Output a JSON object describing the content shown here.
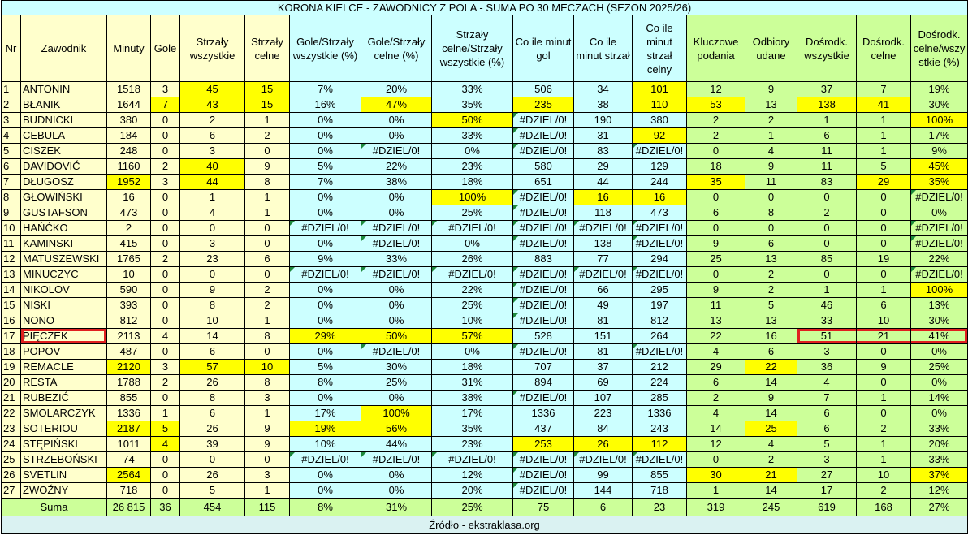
{
  "title": "KORONA KIELCE - ZAWODNICY Z POLA - SUMA PO 30 MECZACH (SEZON 2025/26)",
  "table": {
    "headers": [
      "Nr",
      "Zawodnik",
      "Minuty",
      "Gole",
      "Strzały wszystkie",
      "Strzały celne",
      "Gole/Strzały wszystkie (%)",
      "Gole/Strzały celne (%)",
      "Strzały celne/Strzały wszystkie (%)",
      "Co ile minut gol",
      "Co ile minut strzał",
      "Co ile minut strzał celny",
      "Kluczowe podania",
      "Odbiory udane",
      "Dośrodk. wszystkie",
      "Dośrodk. celne",
      "Dośrodk. celne/wszystkie (%)"
    ],
    "rows": [
      [
        "1",
        "ANTONIN",
        "1518",
        "3",
        "45",
        "15",
        "7%",
        "20%",
        "33%",
        "506",
        "34",
        "101",
        "12",
        "9",
        "37",
        "7",
        "19%"
      ],
      [
        "2",
        "BŁANIK",
        "1644",
        "7",
        "43",
        "15",
        "16%",
        "47%",
        "35%",
        "235",
        "38",
        "110",
        "53",
        "13",
        "138",
        "41",
        "30%"
      ],
      [
        "3",
        "BUDNICKI",
        "380",
        "0",
        "2",
        "1",
        "0%",
        "0%",
        "50%",
        "#DZIEL/0!",
        "190",
        "380",
        "2",
        "2",
        "1",
        "1",
        "100%"
      ],
      [
        "4",
        "CEBULA",
        "184",
        "0",
        "6",
        "2",
        "0%",
        "0%",
        "33%",
        "#DZIEL/0!",
        "31",
        "92",
        "2",
        "1",
        "6",
        "1",
        "17%"
      ],
      [
        "5",
        "CISZEK",
        "248",
        "0",
        "3",
        "0",
        "0%",
        "#DZIEL/0!",
        "0%",
        "#DZIEL/0!",
        "83",
        "#DZIEL/0!",
        "0",
        "4",
        "11",
        "1",
        "9%"
      ],
      [
        "6",
        "DAVIDOVIĆ",
        "1160",
        "2",
        "40",
        "9",
        "5%",
        "22%",
        "23%",
        "580",
        "29",
        "129",
        "18",
        "9",
        "11",
        "5",
        "45%"
      ],
      [
        "7",
        "DŁUGOSZ",
        "1952",
        "3",
        "44",
        "8",
        "7%",
        "38%",
        "18%",
        "651",
        "44",
        "244",
        "35",
        "11",
        "83",
        "29",
        "35%"
      ],
      [
        "8",
        "GŁOWIŃSKI",
        "16",
        "0",
        "1",
        "1",
        "0%",
        "0%",
        "100%",
        "#DZIEL/0!",
        "16",
        "16",
        "0",
        "0",
        "0",
        "0",
        "#DZIEL/0!"
      ],
      [
        "9",
        "GUSTAFSON",
        "473",
        "0",
        "4",
        "1",
        "0%",
        "0%",
        "25%",
        "#DZIEL/0!",
        "118",
        "473",
        "6",
        "8",
        "2",
        "0",
        "0%"
      ],
      [
        "10",
        "HAŃĆKO",
        "2",
        "0",
        "0",
        "0",
        "#DZIEL/0!",
        "#DZIEL/0!",
        "#DZIEL/0!",
        "#DZIEL/0!",
        "#DZIEL/0!",
        "#DZIEL/0!",
        "0",
        "0",
        "0",
        "0",
        "#DZIEL/0!"
      ],
      [
        "11",
        "KAMINSKI",
        "415",
        "0",
        "3",
        "0",
        "0%",
        "#DZIEL/0!",
        "0%",
        "#DZIEL/0!",
        "138",
        "#DZIEL/0!",
        "9",
        "6",
        "0",
        "0",
        "#DZIEL/0!"
      ],
      [
        "12",
        "MATUSZEWSKI",
        "1765",
        "2",
        "23",
        "6",
        "9%",
        "33%",
        "26%",
        "883",
        "77",
        "294",
        "25",
        "13",
        "85",
        "19",
        "22%"
      ],
      [
        "13",
        "MINUCZYC",
        "10",
        "0",
        "0",
        "0",
        "#DZIEL/0!",
        "#DZIEL/0!",
        "#DZIEL/0!",
        "#DZIEL/0!",
        "#DZIEL/0!",
        "#DZIEL/0!",
        "0",
        "2",
        "0",
        "0",
        "#DZIEL/0!"
      ],
      [
        "14",
        "NIKOLOV",
        "590",
        "0",
        "9",
        "2",
        "0%",
        "0%",
        "22%",
        "#DZIEL/0!",
        "66",
        "295",
        "9",
        "2",
        "1",
        "1",
        "100%"
      ],
      [
        "15",
        "NISKI",
        "393",
        "0",
        "8",
        "2",
        "0%",
        "0%",
        "25%",
        "#DZIEL/0!",
        "49",
        "197",
        "11",
        "5",
        "46",
        "6",
        "13%"
      ],
      [
        "16",
        "NONO",
        "812",
        "0",
        "10",
        "1",
        "0%",
        "0%",
        "10%",
        "#DZIEL/0!",
        "81",
        "812",
        "13",
        "13",
        "33",
        "10",
        "30%"
      ],
      [
        "17",
        "PIĘCZEK",
        "2113",
        "4",
        "14",
        "8",
        "29%",
        "50%",
        "57%",
        "528",
        "151",
        "264",
        "22",
        "16",
        "51",
        "21",
        "41%"
      ],
      [
        "18",
        "POPOV",
        "487",
        "0",
        "6",
        "0",
        "0%",
        "#DZIEL/0!",
        "0%",
        "#DZIEL/0!",
        "81",
        "#DZIEL/0!",
        "4",
        "6",
        "3",
        "0",
        "0%"
      ],
      [
        "19",
        "REMACLE",
        "2120",
        "3",
        "57",
        "10",
        "5%",
        "30%",
        "18%",
        "707",
        "37",
        "212",
        "29",
        "22",
        "36",
        "9",
        "25%"
      ],
      [
        "20",
        "RESTA",
        "1788",
        "2",
        "26",
        "8",
        "8%",
        "25%",
        "31%",
        "894",
        "69",
        "224",
        "6",
        "14",
        "4",
        "0",
        "0%"
      ],
      [
        "21",
        "RUBEZIĆ",
        "855",
        "0",
        "8",
        "3",
        "0%",
        "0%",
        "38%",
        "#DZIEL/0!",
        "107",
        "285",
        "2",
        "9",
        "7",
        "1",
        "14%"
      ],
      [
        "22",
        "SMOLARCZYK",
        "1336",
        "1",
        "6",
        "1",
        "17%",
        "100%",
        "17%",
        "1336",
        "223",
        "1336",
        "4",
        "14",
        "6",
        "0",
        "0%"
      ],
      [
        "23",
        "SOTERIOU",
        "2187",
        "5",
        "26",
        "9",
        "19%",
        "56%",
        "35%",
        "437",
        "84",
        "243",
        "14",
        "25",
        "6",
        "2",
        "33%"
      ],
      [
        "24",
        "STĘPIŃSKI",
        "1011",
        "4",
        "39",
        "9",
        "10%",
        "44%",
        "23%",
        "253",
        "26",
        "112",
        "12",
        "4",
        "5",
        "1",
        "20%"
      ],
      [
        "25",
        "STRZEBOŃSKI",
        "74",
        "0",
        "0",
        "0",
        "#DZIEL/0!",
        "#DZIEL/0!",
        "#DZIEL/0!",
        "#DZIEL/0!",
        "#DZIEL/0!",
        "#DZIEL/0!",
        "0",
        "2",
        "3",
        "1",
        "33%"
      ],
      [
        "26",
        "SVETLIN",
        "2564",
        "0",
        "26",
        "3",
        "0%",
        "0%",
        "12%",
        "#DZIEL/0!",
        "99",
        "855",
        "30",
        "21",
        "27",
        "10",
        "37%"
      ],
      [
        "27",
        "ZWOŹNY",
        "718",
        "0",
        "5",
        "1",
        "0%",
        "0%",
        "20%",
        "#DZIEL/0!",
        "144",
        "718",
        "1",
        "14",
        "17",
        "2",
        "12%"
      ]
    ],
    "total": {
      "label": "Suma",
      "values": [
        "26 815",
        "36",
        "454",
        "115",
        "8%",
        "31%",
        "25%",
        "75",
        "6",
        "23",
        "319",
        "245",
        "619",
        "168",
        "27%"
      ]
    }
  },
  "footer": "Źródło - ekstraklasa.org"
}
